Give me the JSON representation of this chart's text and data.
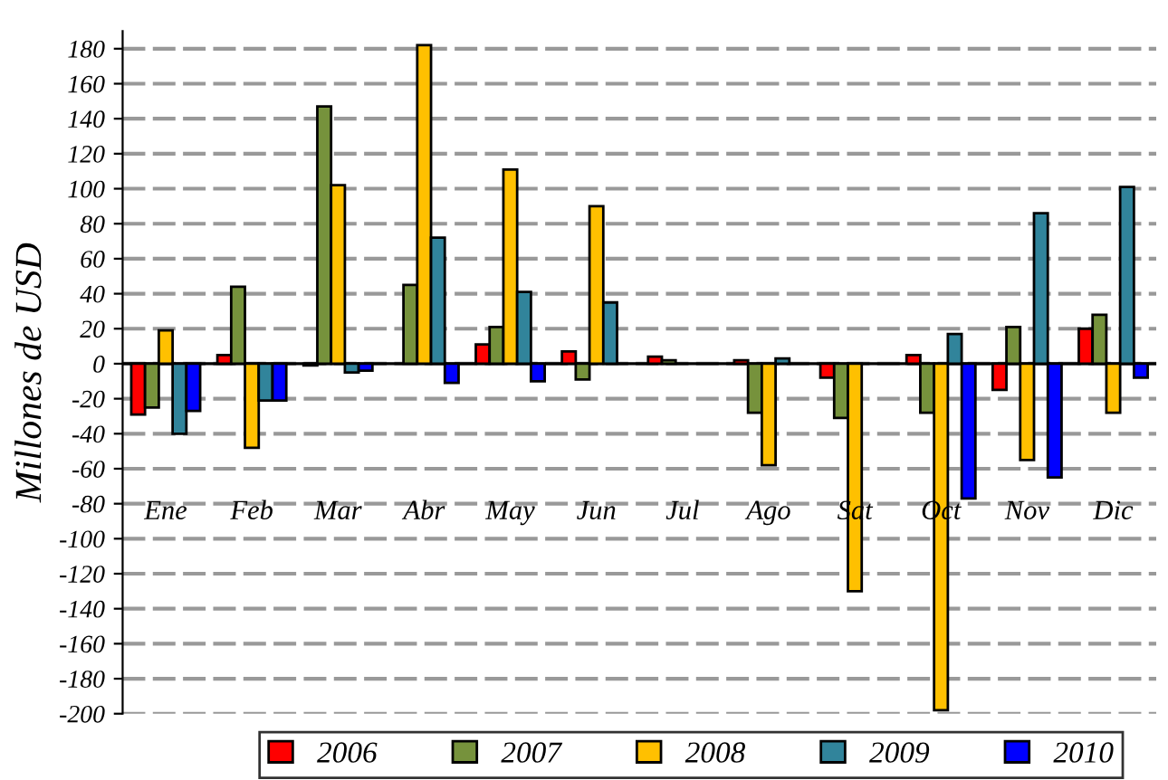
{
  "chart_data": {
    "type": "bar",
    "ylabel": "Millones de USD",
    "categories": [
      "Ene",
      "Feb",
      "Mar",
      "Abr",
      "May",
      "Jun",
      "Jul",
      "Ago",
      "Sat",
      "Oct",
      "Nov",
      "Dic"
    ],
    "series": [
      {
        "name": "2006",
        "color": "#ff0000",
        "values": [
          -29,
          5,
          -1,
          null,
          11,
          7,
          4,
          2,
          -8,
          5,
          -15,
          20
        ]
      },
      {
        "name": "2007",
        "color": "#76923c",
        "values": [
          -25,
          44,
          147,
          45,
          21,
          -9,
          2,
          -28,
          -31,
          -28,
          21,
          28
        ]
      },
      {
        "name": "2008",
        "color": "#ffc000",
        "values": [
          19,
          -48,
          102,
          182,
          111,
          90,
          null,
          -58,
          -130,
          -198,
          -55,
          -28
        ]
      },
      {
        "name": "2009",
        "color": "#31849b",
        "values": [
          -40,
          -21,
          -5,
          72,
          41,
          35,
          null,
          3,
          null,
          17,
          86,
          101
        ]
      },
      {
        "name": "2010",
        "color": "#0000ff",
        "values": [
          -27,
          -21,
          -4,
          -11,
          -10,
          null,
          null,
          null,
          null,
          -77,
          -65,
          -8
        ]
      }
    ],
    "ylim": [
      -200,
      190
    ],
    "yticks": [
      -200,
      -180,
      -160,
      -140,
      -120,
      -100,
      -80,
      -60,
      -40,
      -20,
      0,
      20,
      40,
      60,
      80,
      100,
      120,
      140,
      160,
      180
    ],
    "grid": "y",
    "legend": "bottom"
  }
}
